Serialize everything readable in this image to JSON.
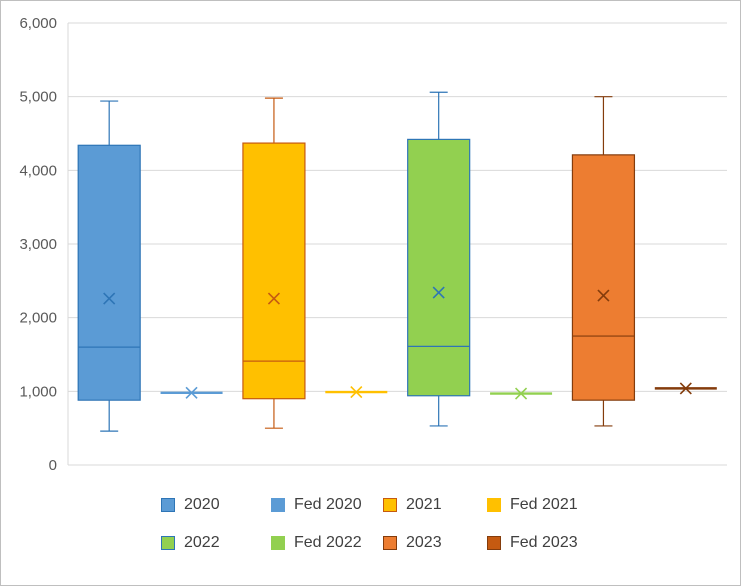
{
  "chart_data": {
    "type": "box",
    "ylim": [
      0,
      6000
    ],
    "y_ticks": [
      "0",
      "1,000",
      "2,000",
      "3,000",
      "4,000",
      "5,000",
      "6,000"
    ],
    "y_tick_values": [
      0,
      1000,
      2000,
      3000,
      4000,
      5000,
      6000
    ],
    "grid": true,
    "legend_position": "bottom",
    "series": [
      {
        "name": "2020",
        "min": 460,
        "q1": 880,
        "median": 1600,
        "q3": 4340,
        "max": 4940,
        "mean": 2260,
        "fill": "#5b9bd5",
        "stroke": "#2e75b6"
      },
      {
        "name": "Fed 2020",
        "value": 980,
        "fill": "#5b9bd5",
        "stroke": "#5b9bd5"
      },
      {
        "name": "2021",
        "min": 500,
        "q1": 900,
        "median": 1410,
        "q3": 4370,
        "max": 4980,
        "mean": 2260,
        "fill": "#ffc000",
        "stroke": "#c55a11"
      },
      {
        "name": "Fed 2021",
        "value": 990,
        "fill": "#ffc000",
        "stroke": "#ffc000"
      },
      {
        "name": "2022",
        "min": 530,
        "q1": 940,
        "median": 1610,
        "q3": 4420,
        "max": 5060,
        "mean": 2340,
        "fill": "#92d050",
        "stroke": "#2e75b6"
      },
      {
        "name": "Fed 2022",
        "value": 970,
        "fill": "#92d050",
        "stroke": "#92d050"
      },
      {
        "name": "2023",
        "min": 530,
        "q1": 880,
        "median": 1750,
        "q3": 4210,
        "max": 5000,
        "mean": 2300,
        "fill": "#ed7d31",
        "stroke": "#843c0c"
      },
      {
        "name": "Fed 2023",
        "value": 1040,
        "fill": "#c55a11",
        "stroke": "#843c0c"
      }
    ]
  }
}
